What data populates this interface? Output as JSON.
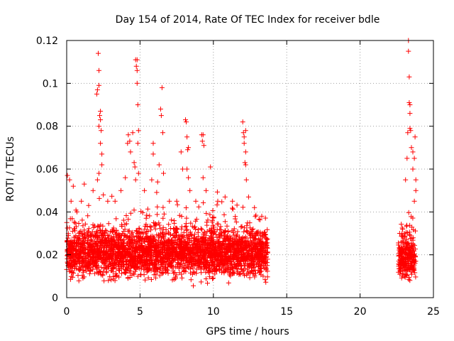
{
  "chart_data": {
    "type": "scatter",
    "title": "Day 154 of 2014, Rate Of TEC Index for receiver bdle",
    "xlabel": "GPS time / hours",
    "ylabel": "ROTI / TECUs",
    "xlim": [
      0,
      25
    ],
    "ylim": [
      0,
      0.12
    ],
    "x_ticks": [
      0,
      5,
      10,
      15,
      20,
      25
    ],
    "y_ticks": [
      0,
      0.02,
      0.04,
      0.06,
      0.08,
      0.1,
      0.12
    ],
    "x_tick_labels": [
      "0",
      "5",
      "10",
      "15",
      "20",
      "25"
    ],
    "y_tick_labels": [
      "0",
      "0.02",
      "0.04",
      "0.06",
      "0.08",
      "0.1",
      "0.12"
    ],
    "grid": true,
    "marker": "plus",
    "color": "#ff0000",
    "series": [
      {
        "name": "ROTI",
        "segments": [
          {
            "x_range": [
              0.0,
              13.7
            ],
            "typical_range": [
              0.005,
              0.035
            ]
          },
          {
            "x_range": [
              22.6,
              23.8
            ],
            "typical_range": [
              0.005,
              0.03
            ]
          }
        ],
        "points": [
          [
            0.05,
            0.057
          ],
          [
            0.2,
            0.055
          ],
          [
            0.3,
            0.045
          ],
          [
            0.45,
            0.052
          ],
          [
            0.7,
            0.04
          ],
          [
            1.0,
            0.045
          ],
          [
            1.2,
            0.053
          ],
          [
            1.5,
            0.043
          ],
          [
            1.8,
            0.05
          ],
          [
            2.05,
            0.095
          ],
          [
            2.1,
            0.097
          ],
          [
            2.15,
            0.114
          ],
          [
            2.2,
            0.106
          ],
          [
            2.2,
            0.099
          ],
          [
            2.2,
            0.08
          ],
          [
            2.25,
            0.085
          ],
          [
            2.3,
            0.087
          ],
          [
            2.3,
            0.083
          ],
          [
            2.3,
            0.072
          ],
          [
            2.35,
            0.078
          ],
          [
            2.4,
            0.067
          ],
          [
            2.4,
            0.062
          ],
          [
            2.2,
            0.058
          ],
          [
            2.1,
            0.055
          ],
          [
            2.5,
            0.048
          ],
          [
            2.8,
            0.045
          ],
          [
            3.3,
            0.045
          ],
          [
            3.7,
            0.05
          ],
          [
            4.0,
            0.056
          ],
          [
            4.15,
            0.072
          ],
          [
            4.2,
            0.076
          ],
          [
            4.3,
            0.073
          ],
          [
            4.35,
            0.068
          ],
          [
            4.5,
            0.077
          ],
          [
            4.6,
            0.063
          ],
          [
            4.65,
            0.061
          ],
          [
            4.7,
            0.111
          ],
          [
            4.75,
            0.108
          ],
          [
            4.8,
            0.111
          ],
          [
            4.8,
            0.106
          ],
          [
            4.8,
            0.1
          ],
          [
            4.85,
            0.09
          ],
          [
            4.9,
            0.078
          ],
          [
            4.85,
            0.072
          ],
          [
            4.7,
            0.055
          ],
          [
            4.9,
            0.058
          ],
          [
            5.3,
            0.05
          ],
          [
            5.8,
            0.055
          ],
          [
            5.9,
            0.072
          ],
          [
            5.9,
            0.067
          ],
          [
            6.2,
            0.054
          ],
          [
            6.4,
            0.088
          ],
          [
            6.45,
            0.085
          ],
          [
            6.5,
            0.098
          ],
          [
            6.55,
            0.077
          ],
          [
            6.3,
            0.062
          ],
          [
            6.6,
            0.058
          ],
          [
            7.0,
            0.045
          ],
          [
            7.5,
            0.045
          ],
          [
            7.8,
            0.068
          ],
          [
            7.9,
            0.06
          ],
          [
            8.1,
            0.083
          ],
          [
            8.15,
            0.082
          ],
          [
            8.2,
            0.075
          ],
          [
            8.25,
            0.069
          ],
          [
            8.3,
            0.07
          ],
          [
            8.2,
            0.06
          ],
          [
            8.3,
            0.056
          ],
          [
            8.4,
            0.05
          ],
          [
            8.8,
            0.045
          ],
          [
            9.2,
            0.076
          ],
          [
            9.25,
            0.073
          ],
          [
            9.3,
            0.076
          ],
          [
            9.35,
            0.071
          ],
          [
            9.3,
            0.056
          ],
          [
            9.5,
            0.05
          ],
          [
            9.8,
            0.061
          ],
          [
            10.3,
            0.045
          ],
          [
            10.8,
            0.047
          ],
          [
            11.3,
            0.045
          ],
          [
            12.0,
            0.082
          ],
          [
            12.05,
            0.077
          ],
          [
            12.1,
            0.075
          ],
          [
            12.2,
            0.078
          ],
          [
            12.1,
            0.072
          ],
          [
            12.2,
            0.068
          ],
          [
            12.15,
            0.063
          ],
          [
            12.2,
            0.062
          ],
          [
            12.25,
            0.055
          ],
          [
            12.4,
            0.047
          ],
          [
            12.8,
            0.042
          ],
          [
            13.3,
            0.038
          ],
          [
            22.7,
            0.03
          ],
          [
            22.9,
            0.032
          ],
          [
            23.1,
            0.055
          ],
          [
            23.2,
            0.065
          ],
          [
            23.25,
            0.077
          ],
          [
            23.3,
            0.12
          ],
          [
            23.3,
            0.115
          ],
          [
            23.35,
            0.103
          ],
          [
            23.35,
            0.091
          ],
          [
            23.4,
            0.09
          ],
          [
            23.4,
            0.086
          ],
          [
            23.4,
            0.079
          ],
          [
            23.45,
            0.078
          ],
          [
            23.5,
            0.07
          ],
          [
            23.6,
            0.068
          ],
          [
            23.6,
            0.06
          ],
          [
            23.7,
            0.065
          ],
          [
            23.75,
            0.075
          ],
          [
            23.8,
            0.055
          ],
          [
            23.8,
            0.05
          ],
          [
            23.7,
            0.045
          ]
        ]
      }
    ]
  }
}
